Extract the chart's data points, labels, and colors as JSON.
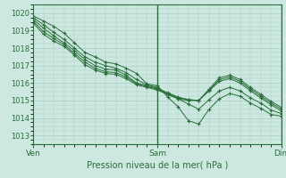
{
  "title": "",
  "xlabel": "Pression niveau de la mer( hPa )",
  "bg_color": "#cce8e0",
  "grid_color": "#a8cfc4",
  "line_color": "#2a6e3a",
  "ylim": [
    1012.5,
    1020.5
  ],
  "yticks": [
    1013,
    1014,
    1015,
    1016,
    1017,
    1018,
    1019,
    1020
  ],
  "xtick_labels": [
    "Ven",
    "Sam",
    "Dim"
  ],
  "xtick_positions": [
    0,
    48,
    96
  ],
  "x_total": 96,
  "lines": [
    [
      0,
      1019.85,
      4,
      1019.55,
      8,
      1019.25,
      12,
      1018.85,
      16,
      1018.3,
      20,
      1017.75,
      24,
      1017.5,
      28,
      1017.2,
      32,
      1017.1,
      36,
      1016.85,
      40,
      1016.55,
      44,
      1015.95,
      48,
      1015.85,
      52,
      1015.2,
      56,
      1014.65,
      60,
      1013.85,
      64,
      1013.65,
      68,
      1014.5,
      72,
      1015.1,
      76,
      1015.4,
      80,
      1015.25,
      84,
      1014.85,
      88,
      1014.55,
      92,
      1014.2,
      96,
      1014.1
    ],
    [
      0,
      1019.75,
      4,
      1019.35,
      8,
      1018.9,
      12,
      1018.5,
      16,
      1018.0,
      20,
      1017.5,
      24,
      1017.2,
      28,
      1017.0,
      32,
      1016.85,
      36,
      1016.6,
      40,
      1016.2,
      44,
      1015.9,
      48,
      1015.75,
      52,
      1015.35,
      56,
      1015.1,
      60,
      1014.8,
      64,
      1014.5,
      68,
      1015.05,
      72,
      1015.55,
      76,
      1015.75,
      80,
      1015.55,
      84,
      1015.15,
      88,
      1014.85,
      92,
      1014.45,
      96,
      1014.25
    ],
    [
      0,
      1019.65,
      4,
      1019.15,
      8,
      1018.7,
      12,
      1018.3,
      16,
      1017.85,
      20,
      1017.35,
      24,
      1017.0,
      28,
      1016.8,
      32,
      1016.75,
      36,
      1016.45,
      40,
      1016.0,
      44,
      1015.85,
      48,
      1015.7,
      52,
      1015.45,
      56,
      1015.2,
      60,
      1015.05,
      64,
      1015.0,
      68,
      1015.55,
      72,
      1016.1,
      76,
      1016.25,
      80,
      1016.0,
      84,
      1015.55,
      88,
      1015.15,
      92,
      1014.75,
      96,
      1014.4
    ],
    [
      0,
      1019.55,
      4,
      1018.95,
      8,
      1018.55,
      12,
      1018.2,
      16,
      1017.7,
      20,
      1017.2,
      24,
      1016.85,
      28,
      1016.65,
      32,
      1016.6,
      36,
      1016.35,
      40,
      1015.95,
      44,
      1015.8,
      48,
      1015.65,
      52,
      1015.4,
      56,
      1015.15,
      60,
      1015.05,
      64,
      1015.0,
      68,
      1015.6,
      72,
      1016.2,
      76,
      1016.35,
      80,
      1016.1,
      84,
      1015.65,
      88,
      1015.25,
      92,
      1014.85,
      96,
      1014.5
    ],
    [
      0,
      1019.45,
      4,
      1018.8,
      8,
      1018.4,
      12,
      1018.1,
      16,
      1017.6,
      20,
      1017.05,
      24,
      1016.75,
      28,
      1016.55,
      32,
      1016.5,
      36,
      1016.25,
      40,
      1015.9,
      44,
      1015.75,
      48,
      1015.6,
      52,
      1015.35,
      56,
      1015.1,
      60,
      1015.0,
      64,
      1015.0,
      68,
      1015.65,
      72,
      1016.3,
      76,
      1016.45,
      80,
      1016.2,
      84,
      1015.75,
      88,
      1015.35,
      92,
      1014.95,
      96,
      1014.6
    ]
  ]
}
